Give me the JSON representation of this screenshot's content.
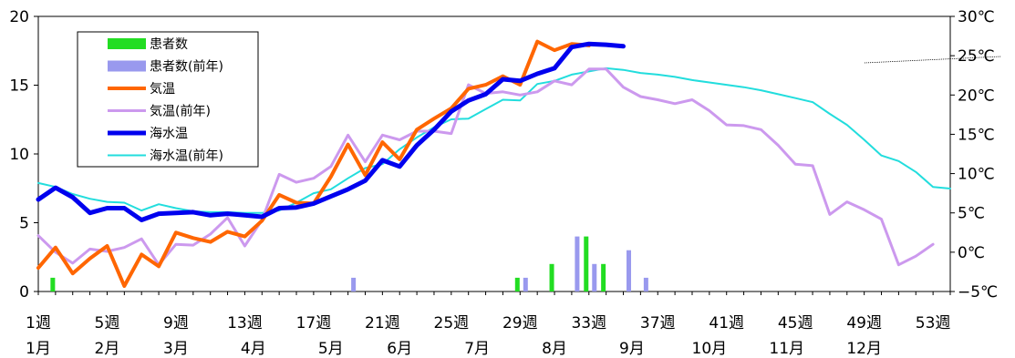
{
  "chart_data": {
    "type": "line",
    "y_left": {
      "range": [
        0,
        20
      ],
      "ticks": [
        "0",
        "5",
        "10",
        "15",
        "20"
      ]
    },
    "y_right": {
      "range": [
        -5,
        30
      ],
      "ticks": [
        "−5℃",
        "0℃",
        "5℃",
        "10℃",
        "15℃",
        "20℃",
        "25℃",
        "30℃"
      ]
    },
    "x_range": [
      1,
      53
    ],
    "week_ticks": [
      {
        "week": 1,
        "label": "1週"
      },
      {
        "week": 5,
        "label": "5週"
      },
      {
        "week": 9,
        "label": "9週"
      },
      {
        "week": 13,
        "label": "13週"
      },
      {
        "week": 17,
        "label": "17週"
      },
      {
        "week": 21,
        "label": "21週"
      },
      {
        "week": 25,
        "label": "25週"
      },
      {
        "week": 29,
        "label": "29週"
      },
      {
        "week": 33,
        "label": "33週"
      },
      {
        "week": 37,
        "label": "37週"
      },
      {
        "week": 41,
        "label": "41週"
      },
      {
        "week": 45,
        "label": "45週"
      },
      {
        "week": 49,
        "label": "49週"
      },
      {
        "week": 53,
        "label": "53週"
      }
    ],
    "month_ticks": [
      {
        "week": 1,
        "label": "1月"
      },
      {
        "week": 5,
        "label": "2月"
      },
      {
        "week": 9,
        "label": "3月"
      },
      {
        "week": 13.5,
        "label": "4月"
      },
      {
        "week": 18,
        "label": "5月"
      },
      {
        "week": 22,
        "label": "6月"
      },
      {
        "week": 26.5,
        "label": "7月"
      },
      {
        "week": 31,
        "label": "8月"
      },
      {
        "week": 35.5,
        "label": "9月"
      },
      {
        "week": 40,
        "label": "10月"
      },
      {
        "week": 44.5,
        "label": "11月"
      },
      {
        "week": 49,
        "label": "12月"
      }
    ],
    "legend": {
      "placement": "top-left"
    },
    "series": [
      {
        "name": "患者数",
        "kind": "bar",
        "axis": "left",
        "color": "#22dd22",
        "points": [
          [
            2,
            1
          ],
          [
            29,
            1
          ],
          [
            31,
            2
          ],
          [
            33,
            4
          ],
          [
            34,
            2
          ]
        ]
      },
      {
        "name": "患者数(前年)",
        "kind": "bar",
        "axis": "left",
        "color": "#9999ee",
        "points": [
          [
            19,
            1
          ],
          [
            29,
            1
          ],
          [
            32,
            4
          ],
          [
            33,
            2
          ],
          [
            35,
            3
          ],
          [
            36,
            1
          ]
        ]
      },
      {
        "name": "気温",
        "kind": "line",
        "axis": "right",
        "color": "#ff6600",
        "width": 4,
        "points": [
          [
            1,
            -2.0
          ],
          [
            2,
            0.6
          ],
          [
            3,
            -2.7
          ],
          [
            4,
            -0.8
          ],
          [
            5,
            0.8
          ],
          [
            6,
            -4.3
          ],
          [
            7,
            -0.3
          ],
          [
            8,
            -1.8
          ],
          [
            9,
            2.5
          ],
          [
            10,
            1.8
          ],
          [
            11,
            1.3
          ],
          [
            12,
            2.6
          ],
          [
            13,
            2.0
          ],
          [
            14,
            4.0
          ],
          [
            15,
            7.3
          ],
          [
            16,
            6.3
          ],
          [
            17,
            6.2
          ],
          [
            18,
            9.6
          ],
          [
            19,
            13.7
          ],
          [
            20,
            9.8
          ],
          [
            21,
            14.0
          ],
          [
            22,
            11.8
          ],
          [
            23,
            15.6
          ],
          [
            24,
            17.0
          ],
          [
            25,
            18.3
          ],
          [
            26,
            20.8
          ],
          [
            27,
            21.3
          ],
          [
            28,
            22.4
          ],
          [
            29,
            21.3
          ],
          [
            30,
            26.8
          ],
          [
            31,
            25.7
          ],
          [
            32,
            26.5
          ],
          [
            33,
            26.3
          ]
        ]
      },
      {
        "name": "気温(前年)",
        "kind": "line",
        "axis": "right",
        "color": "#cc99ee",
        "width": 3,
        "points": [
          [
            1,
            2.1
          ],
          [
            2,
            0.0
          ],
          [
            3,
            -1.4
          ],
          [
            4,
            0.4
          ],
          [
            5,
            0.1
          ],
          [
            6,
            0.6
          ],
          [
            7,
            1.7
          ],
          [
            8,
            -1.6
          ],
          [
            9,
            1.0
          ],
          [
            10,
            0.9
          ],
          [
            11,
            2.3
          ],
          [
            12,
            4.4
          ],
          [
            13,
            0.8
          ],
          [
            14,
            4.1
          ],
          [
            15,
            9.9
          ],
          [
            16,
            8.9
          ],
          [
            17,
            9.4
          ],
          [
            18,
            10.9
          ],
          [
            19,
            14.9
          ],
          [
            20,
            11.5
          ],
          [
            21,
            14.9
          ],
          [
            22,
            14.3
          ],
          [
            23,
            15.4
          ],
          [
            24,
            15.4
          ],
          [
            25,
            15.1
          ],
          [
            26,
            21.3
          ],
          [
            27,
            20.2
          ],
          [
            28,
            20.4
          ],
          [
            29,
            20.0
          ],
          [
            30,
            20.4
          ],
          [
            31,
            21.8
          ],
          [
            32,
            21.3
          ],
          [
            33,
            23.3
          ],
          [
            34,
            23.3
          ],
          [
            35,
            21.0
          ],
          [
            36,
            19.8
          ],
          [
            37,
            19.4
          ],
          [
            38,
            18.9
          ],
          [
            39,
            19.4
          ],
          [
            40,
            18.0
          ],
          [
            41,
            16.2
          ],
          [
            42,
            16.1
          ],
          [
            43,
            15.6
          ],
          [
            44,
            13.6
          ],
          [
            45,
            11.2
          ],
          [
            46,
            11.0
          ],
          [
            47,
            4.8
          ],
          [
            48,
            6.4
          ],
          [
            49,
            5.4
          ],
          [
            50,
            4.2
          ],
          [
            51,
            -1.6
          ],
          [
            52,
            -0.5
          ],
          [
            53,
            1.0
          ]
        ]
      },
      {
        "name": "海水温",
        "kind": "line",
        "axis": "right",
        "color": "#0000ee",
        "width": 5,
        "points": [
          [
            1,
            6.7
          ],
          [
            2,
            8.2
          ],
          [
            3,
            7.0
          ],
          [
            4,
            5.0
          ],
          [
            5,
            5.6
          ],
          [
            6,
            5.6
          ],
          [
            7,
            4.1
          ],
          [
            8,
            4.9
          ],
          [
            9,
            5.0
          ],
          [
            10,
            5.1
          ],
          [
            11,
            4.7
          ],
          [
            12,
            4.9
          ],
          [
            13,
            4.7
          ],
          [
            14,
            4.5
          ],
          [
            15,
            5.6
          ],
          [
            16,
            5.7
          ],
          [
            17,
            6.2
          ],
          [
            18,
            7.1
          ],
          [
            19,
            8.0
          ],
          [
            20,
            9.1
          ],
          [
            21,
            11.7
          ],
          [
            22,
            10.9
          ],
          [
            23,
            13.6
          ],
          [
            24,
            15.6
          ],
          [
            25,
            17.9
          ],
          [
            26,
            19.3
          ],
          [
            27,
            20.1
          ],
          [
            28,
            22.0
          ],
          [
            29,
            21.8
          ],
          [
            30,
            22.7
          ],
          [
            31,
            23.4
          ],
          [
            32,
            26.1
          ],
          [
            33,
            26.5
          ],
          [
            34,
            26.4
          ],
          [
            35,
            26.2
          ]
        ]
      },
      {
        "name": "海水温(前年)",
        "kind": "line",
        "axis": "right",
        "color": "#22dddd",
        "width": 2,
        "points": [
          [
            1,
            8.8
          ],
          [
            2,
            8.3
          ],
          [
            3,
            7.4
          ],
          [
            4,
            6.8
          ],
          [
            5,
            6.4
          ],
          [
            6,
            6.3
          ],
          [
            7,
            5.3
          ],
          [
            8,
            6.1
          ],
          [
            9,
            5.6
          ],
          [
            10,
            5.2
          ],
          [
            11,
            5.1
          ],
          [
            12,
            5.1
          ],
          [
            13,
            5.0
          ],
          [
            14,
            5.0
          ],
          [
            15,
            5.3
          ],
          [
            16,
            6.3
          ],
          [
            17,
            7.5
          ],
          [
            18,
            8.0
          ],
          [
            19,
            9.4
          ],
          [
            20,
            10.7
          ],
          [
            21,
            11.2
          ],
          [
            22,
            13.1
          ],
          [
            23,
            14.6
          ],
          [
            24,
            15.9
          ],
          [
            25,
            16.9
          ],
          [
            26,
            17.0
          ],
          [
            27,
            18.2
          ],
          [
            28,
            19.4
          ],
          [
            29,
            19.3
          ],
          [
            30,
            21.4
          ],
          [
            31,
            21.8
          ],
          [
            32,
            22.6
          ],
          [
            33,
            23.0
          ],
          [
            34,
            23.4
          ],
          [
            35,
            23.2
          ],
          [
            36,
            22.8
          ],
          [
            37,
            22.6
          ],
          [
            38,
            22.3
          ],
          [
            39,
            21.9
          ],
          [
            40,
            21.6
          ],
          [
            41,
            21.3
          ],
          [
            42,
            21.0
          ],
          [
            43,
            20.6
          ],
          [
            44,
            20.1
          ],
          [
            45,
            19.6
          ],
          [
            46,
            19.1
          ],
          [
            47,
            17.6
          ],
          [
            48,
            16.2
          ],
          [
            49,
            14.3
          ],
          [
            50,
            12.3
          ],
          [
            51,
            11.6
          ],
          [
            52,
            10.2
          ],
          [
            53,
            8.3
          ],
          [
            54,
            8.1
          ]
        ]
      }
    ]
  }
}
